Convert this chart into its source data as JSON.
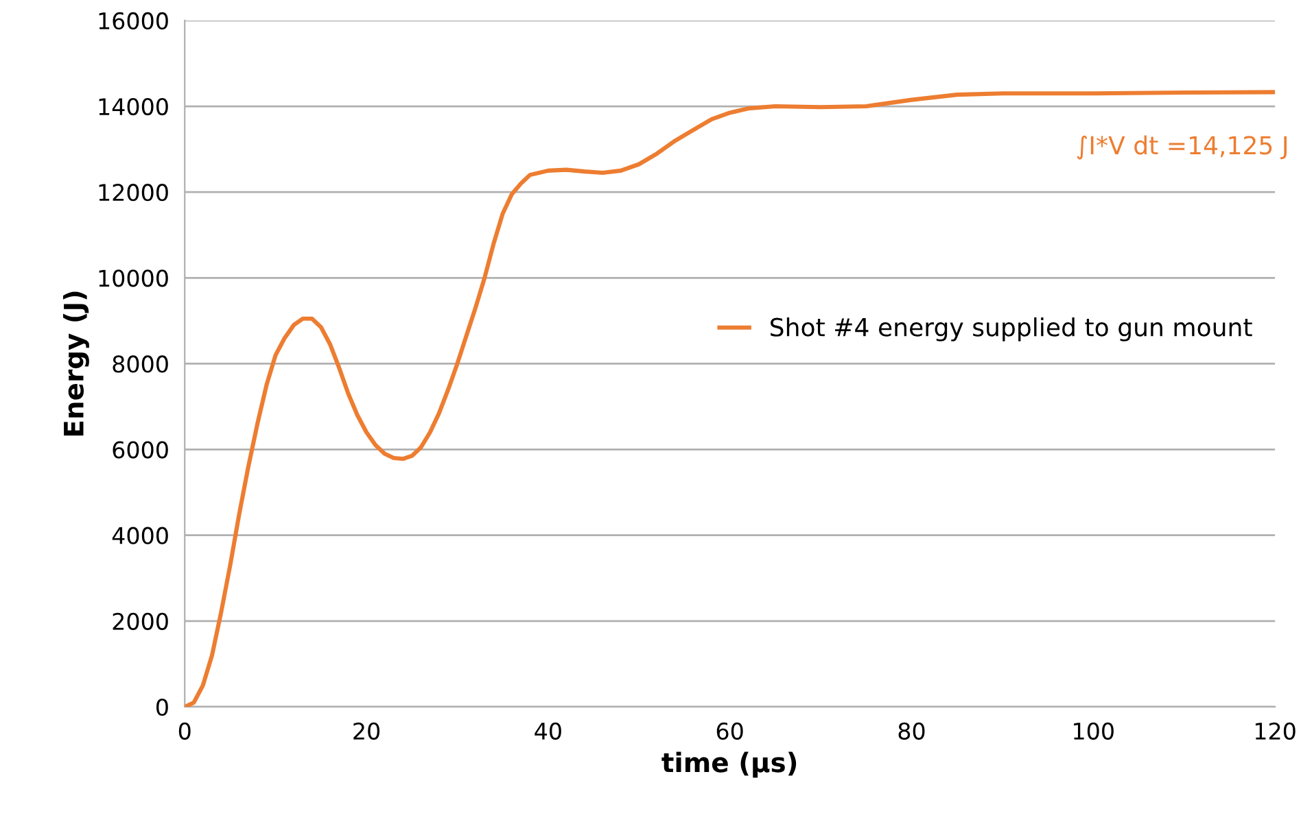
{
  "chart_data": {
    "type": "line",
    "xlabel": "time (µs)",
    "ylabel": "Energy (J)",
    "xlim": [
      0,
      120
    ],
    "xticks": [
      0,
      20,
      40,
      60,
      80,
      100,
      120
    ],
    "ylim": [
      0,
      16000
    ],
    "yticks": [
      0,
      2000,
      4000,
      6000,
      8000,
      10000,
      12000,
      14000,
      16000
    ],
    "grid": "y",
    "legend": "right",
    "marker": "none",
    "line_style": "solid",
    "annotations": [
      "∫I*V dt =14,125 J"
    ],
    "series": [
      {
        "name": "Shot #4 energy supplied to gun mount",
        "color": "#ed7d31",
        "x": [
          0,
          1,
          2,
          3,
          4,
          5,
          6,
          7,
          8,
          9,
          10,
          11,
          12,
          13,
          14,
          15,
          16,
          17,
          18,
          19,
          20,
          21,
          22,
          23,
          24,
          25,
          26,
          27,
          28,
          29,
          30,
          31,
          32,
          33,
          34,
          35,
          36,
          37,
          38,
          40,
          42,
          44,
          46,
          48,
          50,
          52,
          54,
          56,
          58,
          60,
          62,
          65,
          70,
          75,
          80,
          85,
          90,
          100,
          110,
          120
        ],
        "values": [
          0,
          100,
          500,
          1200,
          2200,
          3300,
          4500,
          5600,
          6600,
          7500,
          8200,
          8600,
          8900,
          9050,
          9050,
          8850,
          8450,
          7900,
          7300,
          6800,
          6400,
          6100,
          5900,
          5800,
          5780,
          5850,
          6050,
          6400,
          6850,
          7400,
          8000,
          8650,
          9300,
          10000,
          10800,
          11500,
          11950,
          12200,
          12400,
          12500,
          12520,
          12480,
          12450,
          12500,
          12650,
          12900,
          13200,
          13450,
          13700,
          13850,
          13950,
          14000,
          13980,
          14000,
          14150,
          14270,
          14300,
          14300,
          14320,
          14330
        ]
      }
    ]
  }
}
